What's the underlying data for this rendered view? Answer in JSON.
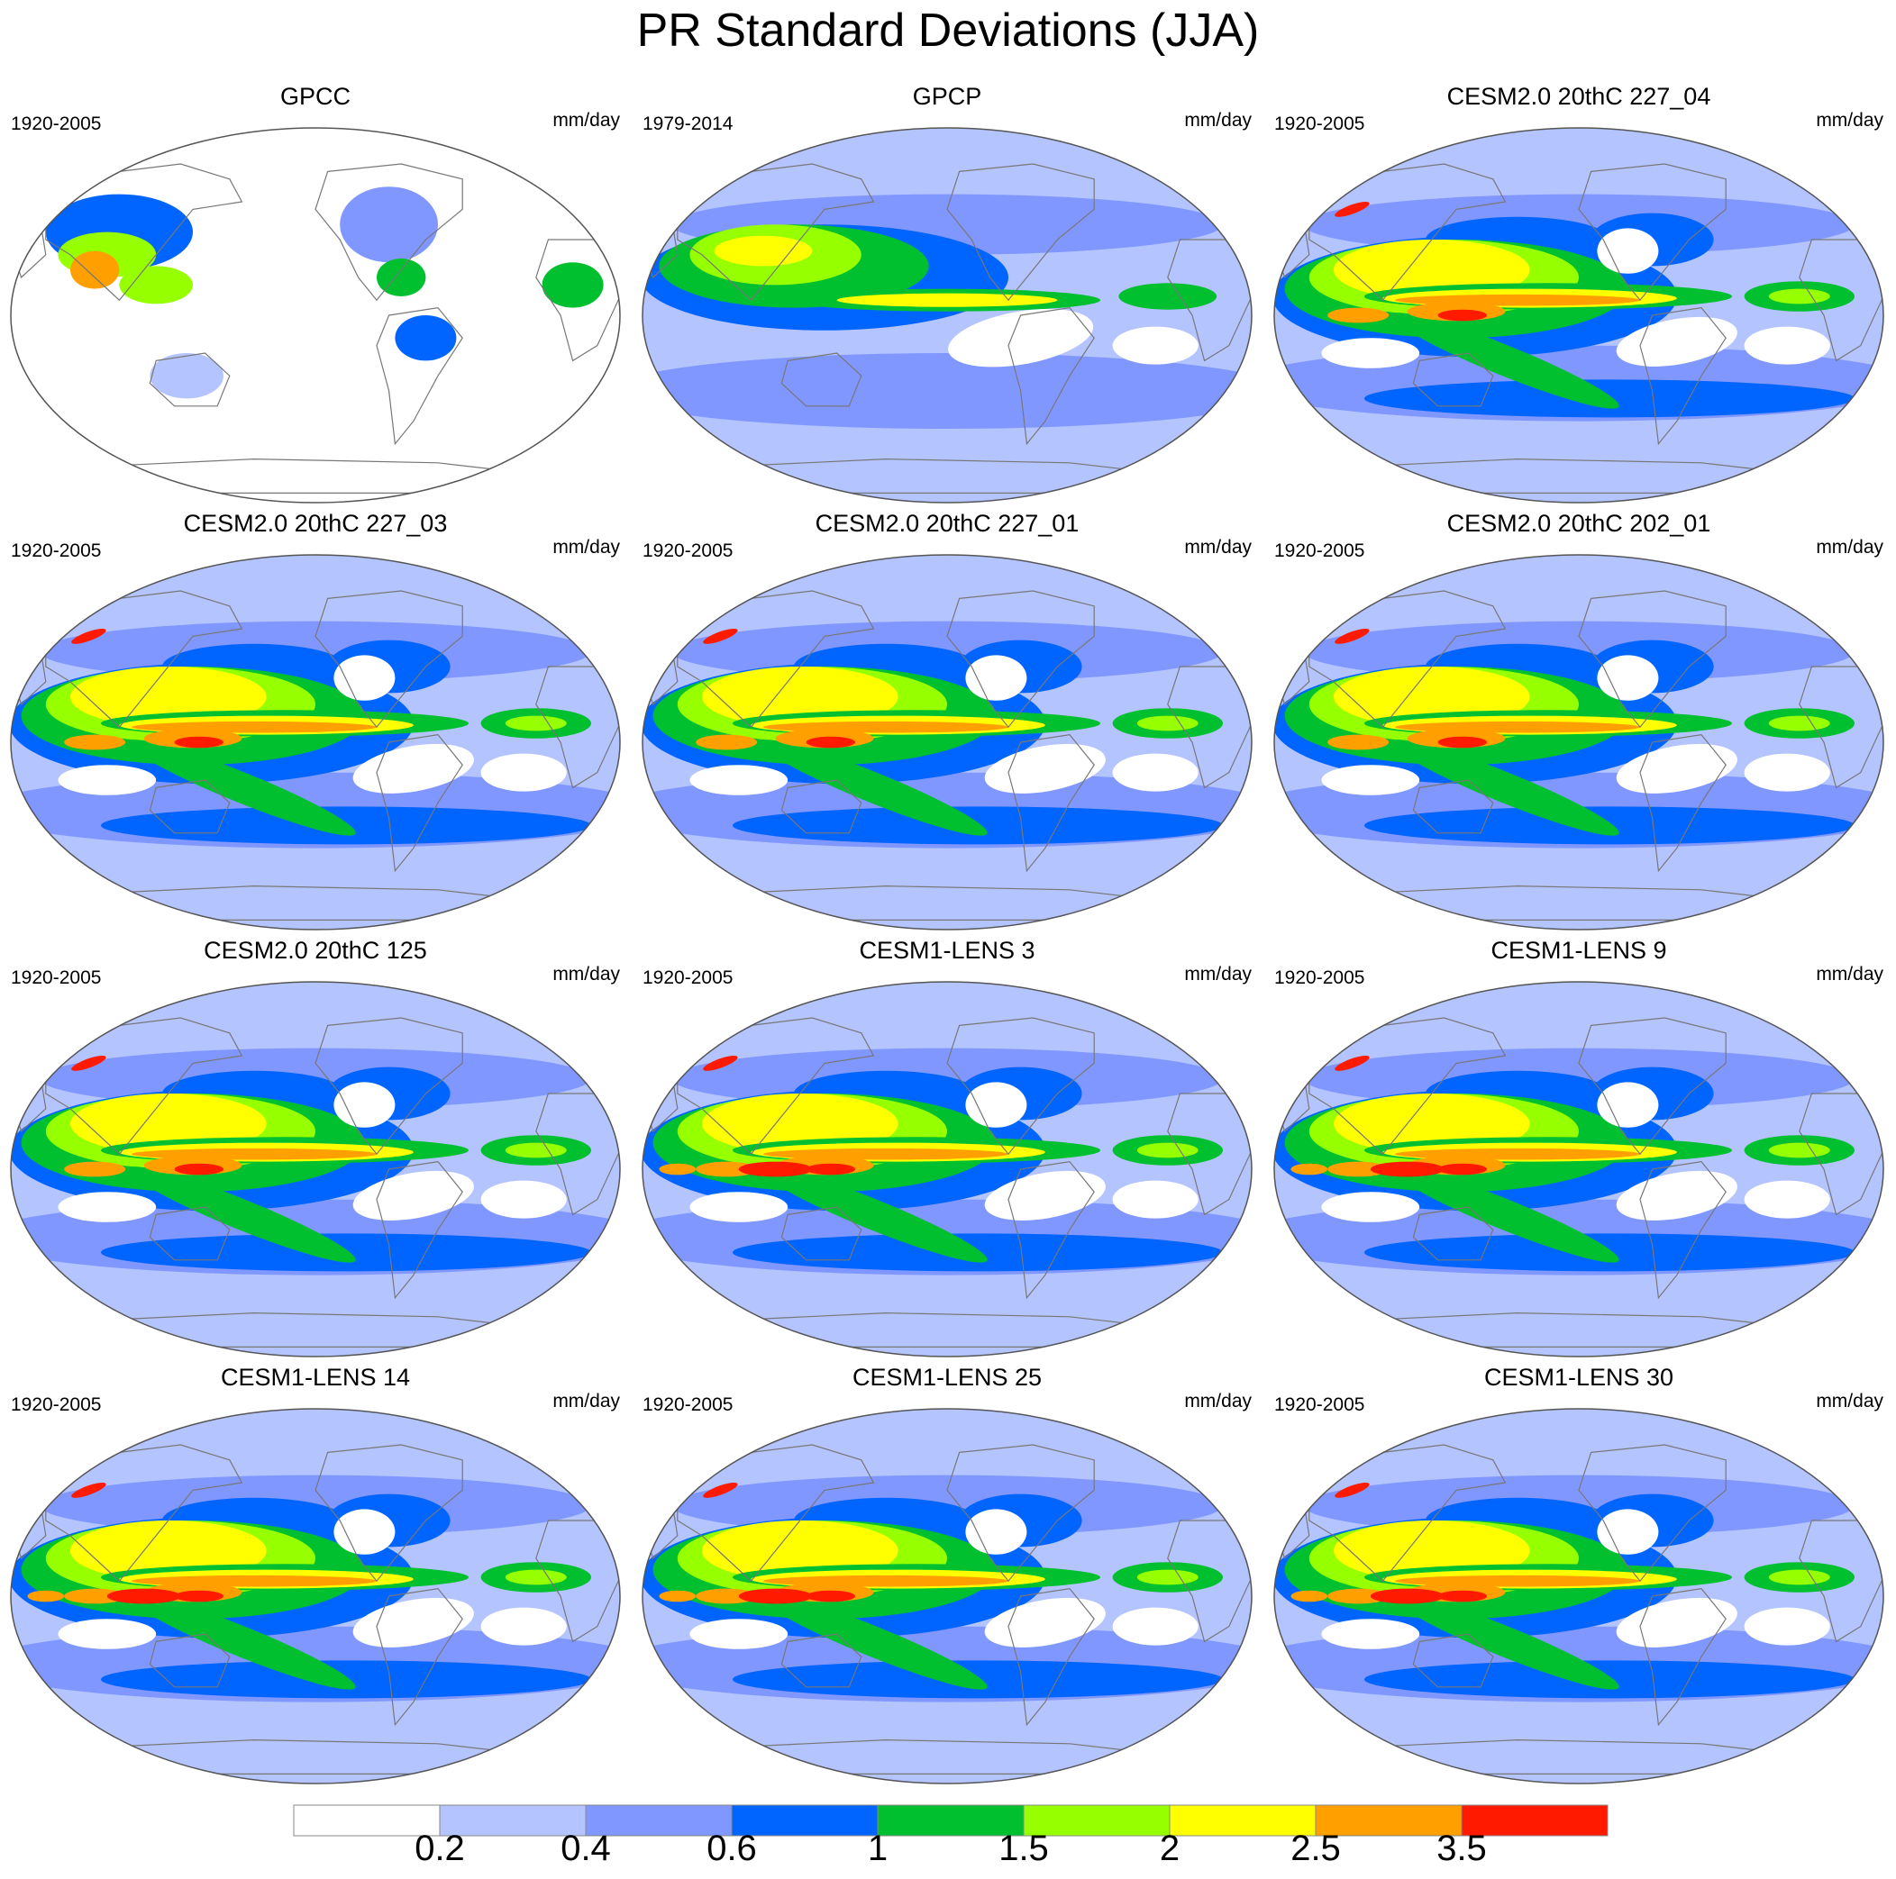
{
  "title": "PR Standard Deviations (JJA)",
  "panels": [
    {
      "name": "GPCC",
      "period": "1920-2005",
      "units": "mm/day",
      "kind": "obs_land"
    },
    {
      "name": "GPCP",
      "period": "1979-2014",
      "units": "mm/day",
      "kind": "obs"
    },
    {
      "name": "CESM2.0 20thC 227_04",
      "period": "1920-2005",
      "units": "mm/day",
      "kind": "model"
    },
    {
      "name": "CESM2.0 20thC 227_03",
      "period": "1920-2005",
      "units": "mm/day",
      "kind": "model"
    },
    {
      "name": "CESM2.0 20thC 227_01",
      "period": "1920-2005",
      "units": "mm/day",
      "kind": "model"
    },
    {
      "name": "CESM2.0 20thC 202_01",
      "period": "1920-2005",
      "units": "mm/day",
      "kind": "model"
    },
    {
      "name": "CESM2.0 20thC 125",
      "period": "1920-2005",
      "units": "mm/day",
      "kind": "model"
    },
    {
      "name": "CESM1-LENS 3",
      "period": "1920-2005",
      "units": "mm/day",
      "kind": "lens"
    },
    {
      "name": "CESM1-LENS 9",
      "period": "1920-2005",
      "units": "mm/day",
      "kind": "lens"
    },
    {
      "name": "CESM1-LENS 14",
      "period": "1920-2005",
      "units": "mm/day",
      "kind": "lens"
    },
    {
      "name": "CESM1-LENS 25",
      "period": "1920-2005",
      "units": "mm/day",
      "kind": "lens"
    },
    {
      "name": "CESM1-LENS 30",
      "period": "1920-2005",
      "units": "mm/day",
      "kind": "lens"
    }
  ],
  "colorbar": {
    "labels": [
      "0.2",
      "0.4",
      "0.6",
      "1",
      "1.5",
      "2",
      "2.5",
      "3.5"
    ],
    "colors": [
      "#ffffff",
      "#b4c4ff",
      "#8097ff",
      "#0064ff",
      "#00c030",
      "#96ff00",
      "#ffff00",
      "#ffa000",
      "#ff1a00"
    ]
  }
}
